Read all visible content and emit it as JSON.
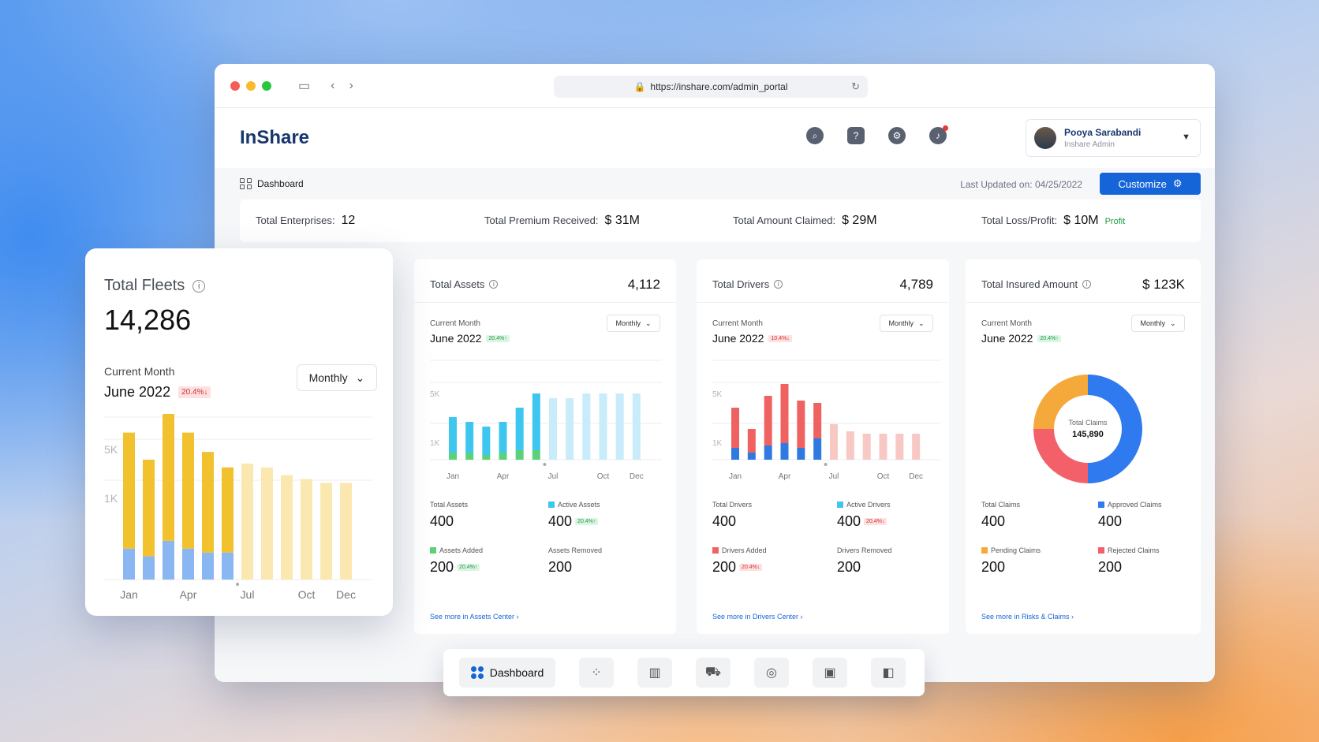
{
  "browser": {
    "url": "https://inshare.com/admin_portal"
  },
  "app": {
    "logo": "InShare"
  },
  "user": {
    "name": "Pooya Sarabandi",
    "role": "Inshare Admin"
  },
  "toolbar": {
    "breadcrumb": "Dashboard",
    "last_updated": "Last Updated on: 04/25/2022",
    "customize_label": "Customize"
  },
  "summary": {
    "enterprises_label": "Total Enterprises:",
    "enterprises_value": "12",
    "premium_label": "Total Premium Received:",
    "premium_value": "$ 31M",
    "claimed_label": "Total Amount Claimed:",
    "claimed_value": "$ 29M",
    "loss_label": "Total Loss/Profit:",
    "loss_value": "$ 10M",
    "loss_tag": "Profit"
  },
  "assets": {
    "title": "Total Assets",
    "total": "4,112",
    "current_label": "Current Month",
    "month": "June 2022",
    "badge": "20.4%↑",
    "period": "Monthly",
    "s1_label": "Total Assets",
    "s1_value": "400",
    "s2_label": "Active Assets",
    "s2_value": "400",
    "s2_badge": "20.4%↑",
    "s3_label": "Assets Added",
    "s3_value": "200",
    "s3_badge": "20.4%↑",
    "s4_label": "Assets Removed",
    "s4_value": "200",
    "see_more": "See more in Assets Center  ›"
  },
  "drivers": {
    "title": "Total Drivers",
    "total": "4,789",
    "current_label": "Current Month",
    "month": "June 2022",
    "badge": "10.4%↓",
    "period": "Monthly",
    "s1_label": "Total Drivers",
    "s1_value": "400",
    "s2_label": "Active Drivers",
    "s2_value": "400",
    "s2_badge": "20.4%↓",
    "s3_label": "Drivers Added",
    "s3_value": "200",
    "s3_badge": "20.4%↓",
    "s4_label": "Drivers Removed",
    "s4_value": "200",
    "see_more": "See more in Drivers Center  ›"
  },
  "insured": {
    "title": "Total Insured Amount",
    "total": "$ 123K",
    "current_label": "Current Month",
    "month": "June 2022",
    "badge": "20.4%↑",
    "period": "Monthly",
    "center_label": "Total Claims",
    "center_value": "145,890",
    "s1_label": "Total Claims",
    "s1_value": "400",
    "s2_label": "Approved Claims",
    "s2_value": "400",
    "s3_label": "Pending Claims",
    "s3_value": "200",
    "s4_label": "Rejected Claims",
    "s4_value": "200",
    "see_more": "See more in Risks & Claims  ›"
  },
  "fleets": {
    "title": "Total Fleets",
    "total": "14,286",
    "current_label": "Current Month",
    "month": "June 2022",
    "badge": "20.4%↓",
    "period": "Monthly"
  },
  "dock": {
    "active_label": "Dashboard"
  },
  "chart_data": [
    {
      "type": "bar",
      "name": "fleets",
      "categories": [
        "Jan",
        "Feb",
        "Mar",
        "Apr",
        "May",
        "Jun",
        "Jul",
        "Aug",
        "Sep",
        "Oct",
        "Nov",
        "Dec"
      ],
      "tick_labels": [
        "Jan",
        "Apr",
        "Jul",
        "Oct",
        "Dec"
      ],
      "y_ticks": [
        "5K",
        "1K"
      ],
      "series": [
        {
          "values": [
            300,
            250,
            380,
            300,
            260,
            220,
            0,
            0,
            0,
            0,
            0,
            0
          ],
          "color": "#f2c12e"
        },
        {
          "values": [
            80,
            60,
            100,
            80,
            70,
            70,
            0,
            0,
            0,
            0,
            0,
            0
          ],
          "color": "#8ab6f2"
        }
      ],
      "faded": [
        0,
        0,
        0,
        0,
        0,
        0,
        300,
        290,
        270,
        260,
        250,
        250
      ],
      "faded_color": "#fbe8b0"
    },
    {
      "type": "bar",
      "name": "assets",
      "categories": [
        "Jan",
        "Feb",
        "Mar",
        "Apr",
        "May",
        "Jun",
        "Jul",
        "Aug",
        "Sep",
        "Oct",
        "Nov",
        "Dec"
      ],
      "tick_labels": [
        "Jan",
        "Apr",
        "Jul",
        "Oct",
        "Dec"
      ],
      "y_ticks": [
        "5K",
        "1K"
      ],
      "series": [
        {
          "values": [
            150,
            130,
            120,
            130,
            180,
            240,
            0,
            0,
            0,
            0,
            0,
            0
          ],
          "color": "#3ec7ee"
        },
        {
          "values": [
            30,
            30,
            20,
            30,
            40,
            40,
            0,
            0,
            0,
            0,
            0,
            0
          ],
          "color": "#5bd27a"
        }
      ],
      "faded": [
        0,
        0,
        0,
        0,
        0,
        0,
        260,
        260,
        280,
        280,
        280,
        280
      ],
      "faded_color": "#c9ecfa"
    },
    {
      "type": "bar",
      "name": "drivers",
      "categories": [
        "Jan",
        "Feb",
        "Mar",
        "Apr",
        "May",
        "Jun",
        "Jul",
        "Aug",
        "Sep",
        "Oct",
        "Nov",
        "Dec"
      ],
      "tick_labels": [
        "Jan",
        "Apr",
        "Jul",
        "Oct",
        "Dec"
      ],
      "y_ticks": [
        "5K",
        "1K"
      ],
      "series": [
        {
          "values": [
            170,
            100,
            210,
            250,
            200,
            150,
            0,
            0,
            0,
            0,
            0,
            0
          ],
          "color": "#f06262"
        },
        {
          "values": [
            50,
            30,
            60,
            70,
            50,
            90,
            0,
            0,
            0,
            0,
            0,
            0
          ],
          "color": "#2f7ae0"
        }
      ],
      "faded": [
        0,
        0,
        0,
        0,
        0,
        0,
        150,
        120,
        110,
        110,
        110,
        110
      ],
      "faded_color": "#f8c8c4"
    },
    {
      "type": "pie",
      "name": "claims",
      "labels": [
        "Approved Claims",
        "Rejected Claims",
        "Pending Claims"
      ],
      "values": [
        50,
        25,
        25
      ],
      "colors": [
        "#2f7aef",
        "#f4606a",
        "#f4a93a"
      ]
    }
  ]
}
